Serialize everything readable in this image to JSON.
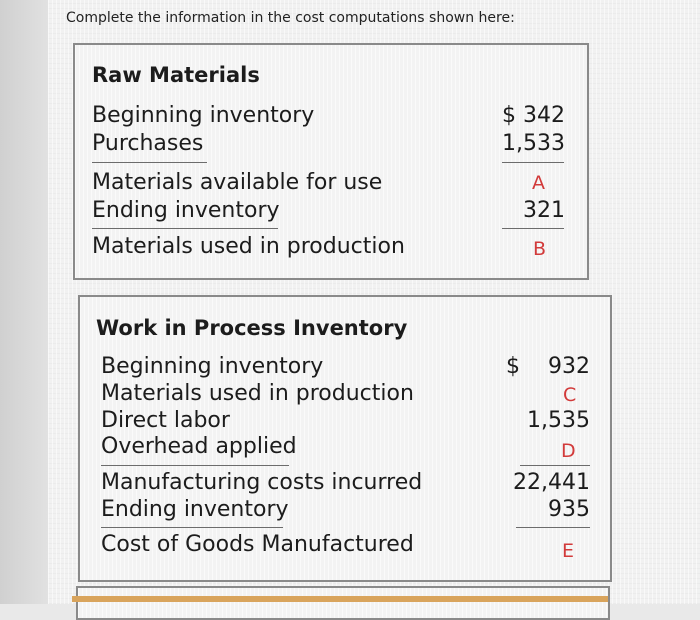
{
  "instruction": "Complete the information in the cost computations shown here:",
  "raw_materials": {
    "title": "Raw Materials",
    "rows": [
      {
        "label": "Beginning inventory",
        "value": "$ 342"
      },
      {
        "label": "Purchases",
        "value": "1,533"
      },
      {
        "label": "Materials available for use",
        "value": "A"
      },
      {
        "label": "Ending inventory",
        "value": "321"
      },
      {
        "label": "Materials used in production",
        "value": "B"
      }
    ]
  },
  "wip": {
    "title": "Work in Process Inventory",
    "dollar": "$",
    "rows": [
      {
        "label": "Beginning inventory",
        "value": "932"
      },
      {
        "label": "Materials used in production",
        "value": "C"
      },
      {
        "label": "Direct labor",
        "value": "1,535"
      },
      {
        "label": "Overhead applied",
        "value": "D"
      },
      {
        "label": "Manufacturing costs incurred",
        "value": "22,441"
      },
      {
        "label": "Ending inventory",
        "value": "935"
      },
      {
        "label": "Cost of Goods Manufactured",
        "value": "E"
      }
    ]
  },
  "colors": {
    "placeholder": "#d23a3a"
  }
}
